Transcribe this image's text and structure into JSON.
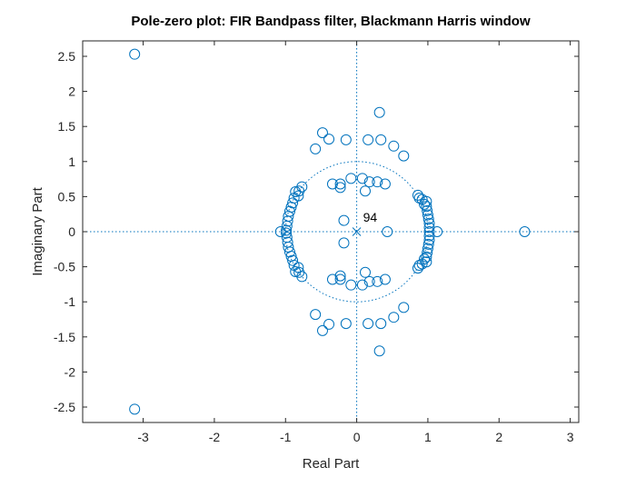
{
  "chart_data": {
    "type": "scatter",
    "title": "Pole-zero plot: FIR Bandpass filter, Blackmann Harris window",
    "xlabel": "Real Part",
    "ylabel": "Imaginary Part",
    "xlim": [
      -3.85,
      3.12
    ],
    "ylim": [
      -2.72,
      2.72
    ],
    "xticks": [
      -3,
      -2,
      -1,
      0,
      1,
      2,
      3
    ],
    "yticks": [
      2.5,
      2,
      1.5,
      1,
      0.5,
      0,
      -0.5,
      -1,
      -1.5,
      -2,
      -2.5
    ],
    "xtick_labels": [
      "-3",
      "-2",
      "-1",
      "0",
      "1",
      "2",
      "3"
    ],
    "ytick_labels": [
      "2.5",
      "2",
      "1.5",
      "1",
      "0.5",
      "0",
      "-0.5",
      "-1",
      "-1.5",
      "-2",
      "-2.5"
    ],
    "grid": false,
    "unit_circle": true,
    "colors": {
      "marker": "#0072BD",
      "axis": "#262626"
    },
    "series": [
      {
        "marker": "circle",
        "points": [
          [
            -3.12,
            2.53
          ],
          [
            -3.12,
            -2.53
          ],
          [
            2.36,
            0.0
          ],
          [
            -1.07,
            0.0
          ],
          [
            1.13,
            0.0
          ],
          [
            0.43,
            0.0
          ],
          [
            -0.58,
            1.18
          ],
          [
            -0.48,
            1.41
          ],
          [
            -0.39,
            1.32
          ],
          [
            -0.15,
            1.31
          ],
          [
            0.32,
            1.7
          ],
          [
            0.16,
            1.31
          ],
          [
            0.34,
            1.31
          ],
          [
            0.52,
            1.22
          ],
          [
            0.66,
            1.08
          ],
          [
            -0.58,
            -1.18
          ],
          [
            -0.48,
            -1.41
          ],
          [
            -0.39,
            -1.32
          ],
          [
            -0.15,
            -1.31
          ],
          [
            0.32,
            -1.7
          ],
          [
            0.16,
            -1.31
          ],
          [
            0.34,
            -1.31
          ],
          [
            0.52,
            -1.22
          ],
          [
            0.66,
            -1.08
          ],
          [
            -0.34,
            0.68
          ],
          [
            -0.23,
            0.68
          ],
          [
            -0.23,
            0.63
          ],
          [
            -0.08,
            0.76
          ],
          [
            0.08,
            0.76
          ],
          [
            0.18,
            0.71
          ],
          [
            0.29,
            0.71
          ],
          [
            0.4,
            0.68
          ],
          [
            0.12,
            0.58
          ],
          [
            -0.34,
            -0.68
          ],
          [
            -0.23,
            -0.68
          ],
          [
            -0.23,
            -0.63
          ],
          [
            -0.08,
            -0.76
          ],
          [
            0.08,
            -0.76
          ],
          [
            0.18,
            -0.71
          ],
          [
            0.29,
            -0.71
          ],
          [
            0.4,
            -0.68
          ],
          [
            0.12,
            -0.58
          ],
          [
            -0.18,
            0.16
          ],
          [
            -0.18,
            -0.16
          ],
          [
            -0.77,
            0.64
          ],
          [
            -0.81,
            0.58
          ],
          [
            -0.86,
            0.57
          ],
          [
            -0.82,
            0.51
          ],
          [
            -0.88,
            0.48
          ],
          [
            -0.9,
            0.41
          ],
          [
            -0.92,
            0.35
          ],
          [
            -0.94,
            0.29
          ],
          [
            -0.96,
            0.22
          ],
          [
            -0.97,
            0.15
          ],
          [
            -0.98,
            0.08
          ],
          [
            -0.99,
            0.02
          ],
          [
            -0.77,
            -0.64
          ],
          [
            -0.81,
            -0.58
          ],
          [
            -0.86,
            -0.57
          ],
          [
            -0.82,
            -0.51
          ],
          [
            -0.88,
            -0.48
          ],
          [
            -0.9,
            -0.41
          ],
          [
            -0.92,
            -0.35
          ],
          [
            -0.94,
            -0.29
          ],
          [
            -0.96,
            -0.22
          ],
          [
            -0.97,
            -0.15
          ],
          [
            -0.98,
            -0.08
          ],
          [
            -0.99,
            -0.02
          ],
          [
            0.86,
            0.52
          ],
          [
            0.88,
            0.48
          ],
          [
            0.92,
            0.46
          ],
          [
            0.98,
            0.43
          ],
          [
            0.98,
            0.36
          ],
          [
            0.99,
            0.3
          ],
          [
            1.0,
            0.24
          ],
          [
            1.01,
            0.18
          ],
          [
            1.02,
            0.12
          ],
          [
            1.02,
            0.06
          ],
          [
            1.02,
            0.0
          ],
          [
            0.95,
            0.39
          ],
          [
            0.86,
            -0.52
          ],
          [
            0.88,
            -0.48
          ],
          [
            0.92,
            -0.46
          ],
          [
            0.98,
            -0.43
          ],
          [
            0.98,
            -0.36
          ],
          [
            0.99,
            -0.3
          ],
          [
            1.0,
            -0.24
          ],
          [
            1.01,
            -0.18
          ],
          [
            1.02,
            -0.12
          ],
          [
            1.02,
            -0.06
          ],
          [
            0.95,
            -0.39
          ]
        ]
      },
      {
        "marker": "x",
        "points": [
          [
            0,
            0
          ]
        ]
      }
    ],
    "annotations": [
      {
        "text": "94",
        "x": 0.09,
        "y": 0.14
      }
    ]
  }
}
